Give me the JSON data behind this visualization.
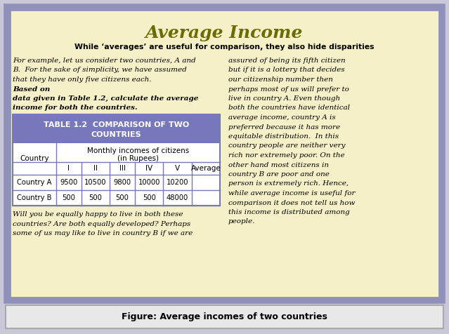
{
  "title": "Average Income",
  "subtitle": "While ‘averages’ are useful for comparison, they also hide disparities",
  "left_para1_normal": "For example, let us consider two countries, A and B.  For the sake of simplicity, we have assumed that they have only five citizens each.  ",
  "left_para1_bold": "Based on data given in Table 1.2, calculate the average income for both the countries.",
  "left_para2": "Will you be equally happy to live in both these\ncountries? Are both equally developed? Perhaps\nsome of us may like to live in country B if we are",
  "right_para": "assured of being its fifth citizen\nbut if it is a lottery that decides\nour citizenship number then\nperhaps most of us will prefer to\nlive in country A. Even though\nboth the countries have identical\naverage income, country A is\npreferred because it has more\nequitable distribution.  In this\ncountry people are neither very\nrich nor extremely poor. On the\nother hand most citizens in\ncountry B are poor and one\nperson is extremely rich. Hence,\nwhile average income is useful for\ncomparison it does not tell us how\nthis income is distributed among\npeople.",
  "left_para1_lines": [
    "For example, let us consider two countries, A and",
    "B.  For the sake of simplicity, we have assumed",
    "that they have only five citizens each.  "
  ],
  "left_para1_bold_lines": [
    "Based on",
    "data given in Table 1.2, calculate the average",
    "income for both the countries."
  ],
  "table_title_line1": "TABLE 1.2  COMPARISON OF TWO",
  "table_title_line2": "COUNTRIES",
  "table_cols": [
    "I",
    "II",
    "III",
    "IV",
    "V",
    "Average"
  ],
  "table_row_a": [
    "Country A",
    "9500",
    "10500",
    "9800",
    "10000",
    "10200",
    ""
  ],
  "table_row_b": [
    "Country B",
    "500",
    "500",
    "500",
    "500",
    "48000",
    ""
  ],
  "figure_caption": "Figure: Average incomes of two countries",
  "bg_color": "#f5f0c8",
  "outer_border_color": "#9090bb",
  "table_header_bg": "#7777bb",
  "table_border_color": "#7777bb",
  "outer_bg": "#c8c8d8",
  "caption_bg": "#e0e0e0",
  "title_color": "#6b6b00",
  "subtitle_color": "#000000",
  "body_text_color": "#000000"
}
